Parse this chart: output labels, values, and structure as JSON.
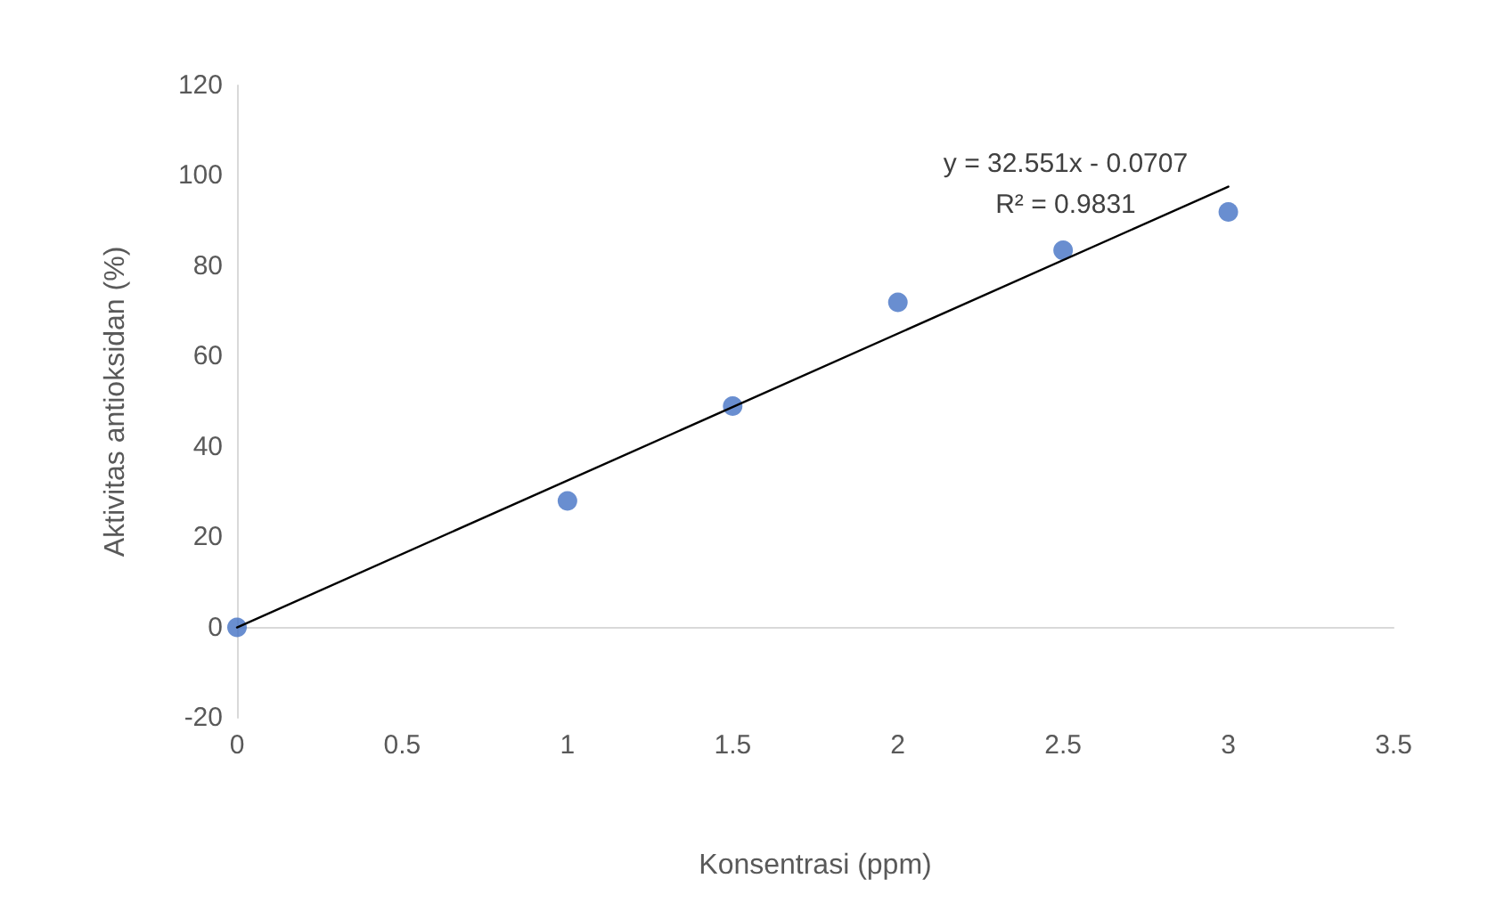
{
  "chart_data": {
    "type": "scatter",
    "xlabel": "Konsentrasi (ppm)",
    "ylabel": "Aktivitas antioksidan (%)",
    "xlim": [
      0,
      3.5
    ],
    "xticks": [
      0,
      0.5,
      1,
      1.5,
      2,
      2.5,
      3,
      3.5
    ],
    "ylim": [
      -20,
      120
    ],
    "yticks": [
      -20,
      0,
      20,
      40,
      60,
      80,
      100,
      120
    ],
    "marker": "circle",
    "series": [
      {
        "color": "#4472c4",
        "x": [
          0,
          1,
          1.5,
          2,
          2.5,
          3
        ],
        "values": [
          0,
          28,
          49,
          72,
          83.5,
          92
        ]
      },
      {
        "type": "line",
        "color": "#000000",
        "x": [
          0,
          3
        ],
        "values": [
          0,
          97.6
        ],
        "line_style": "solid",
        "marker": "none"
      }
    ],
    "annotations": [
      "y = 32.551x - 0.0707",
      "R² = 0.9831"
    ]
  }
}
